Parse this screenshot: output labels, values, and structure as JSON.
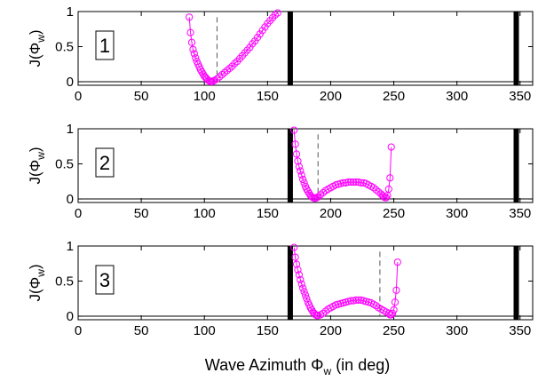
{
  "chart_data": {
    "type": "scatter",
    "xlabel": {
      "main": "Wave Azimuth ",
      "symbol": "Φ",
      "sub": "w",
      "tail": " (in deg)"
    },
    "ylabel": {
      "main": "J(",
      "symbol": "Φ",
      "sub": "w",
      "tail": ")"
    },
    "xlim": [
      0,
      360
    ],
    "ylim": [
      -0.05,
      1
    ],
    "xticks": [
      0,
      50,
      100,
      150,
      200,
      250,
      300,
      350
    ],
    "yticks": [
      0,
      0.5,
      1
    ],
    "ytick_labels": [
      "0",
      "0.5",
      "1"
    ],
    "colors": {
      "series": "#ff00ff",
      "bars": "#000000",
      "dashed": "#555555"
    },
    "panels": [
      {
        "label": "1",
        "bars": [
          168,
          347
        ],
        "dashed_x": 110,
        "dashed_range": [
          0,
          0.92
        ],
        "x": [
          88,
          89,
          90,
          91,
          92,
          93,
          94,
          95,
          96,
          97,
          98,
          99,
          100,
          101,
          102,
          103,
          104,
          105,
          106,
          107,
          108,
          110,
          112,
          114,
          116,
          118,
          120,
          122,
          124,
          126,
          128,
          130,
          132,
          134,
          136,
          138,
          140,
          142,
          144,
          146,
          148,
          150,
          152,
          154,
          156,
          158
        ],
        "y": [
          0.92,
          0.7,
          0.56,
          0.46,
          0.4,
          0.34,
          0.29,
          0.25,
          0.21,
          0.17,
          0.14,
          0.11,
          0.08,
          0.06,
          0.04,
          0.02,
          0.01,
          0.0,
          0.0,
          0.01,
          0.02,
          0.04,
          0.07,
          0.1,
          0.13,
          0.16,
          0.19,
          0.22,
          0.26,
          0.29,
          0.33,
          0.37,
          0.41,
          0.45,
          0.49,
          0.54,
          0.58,
          0.63,
          0.68,
          0.73,
          0.78,
          0.83,
          0.87,
          0.91,
          0.95,
          0.98
        ]
      },
      {
        "label": "2",
        "bars": [
          168,
          347
        ],
        "dashed_x": 190,
        "dashed_range": [
          0,
          0.92
        ],
        "x": [
          171,
          172,
          173,
          174,
          175,
          176,
          177,
          178,
          179,
          180,
          181,
          182,
          183,
          184,
          185,
          186,
          187,
          188,
          189,
          190,
          192,
          194,
          196,
          198,
          200,
          202,
          204,
          206,
          208,
          210,
          212,
          214,
          216,
          218,
          220,
          222,
          224,
          226,
          228,
          230,
          232,
          234,
          236,
          238,
          240,
          241,
          242,
          243,
          244,
          245,
          246,
          247,
          248
        ],
        "y": [
          0.98,
          0.78,
          0.64,
          0.54,
          0.46,
          0.4,
          0.34,
          0.28,
          0.23,
          0.18,
          0.14,
          0.11,
          0.08,
          0.05,
          0.03,
          0.02,
          0.01,
          0.01,
          0.02,
          0.03,
          0.06,
          0.09,
          0.12,
          0.14,
          0.16,
          0.18,
          0.2,
          0.21,
          0.22,
          0.23,
          0.23,
          0.24,
          0.24,
          0.24,
          0.24,
          0.24,
          0.23,
          0.23,
          0.22,
          0.2,
          0.18,
          0.16,
          0.13,
          0.1,
          0.07,
          0.05,
          0.03,
          0.02,
          0.02,
          0.05,
          0.14,
          0.3,
          0.74
        ]
      },
      {
        "label": "3",
        "bars": [
          168,
          347
        ],
        "dashed_x": 239,
        "dashed_range": [
          0,
          0.92
        ],
        "x": [
          171,
          172,
          173,
          174,
          175,
          176,
          177,
          178,
          179,
          180,
          181,
          182,
          183,
          184,
          185,
          186,
          187,
          188,
          189,
          190,
          192,
          194,
          196,
          198,
          200,
          202,
          204,
          206,
          208,
          210,
          212,
          214,
          216,
          218,
          220,
          222,
          224,
          226,
          228,
          230,
          232,
          234,
          236,
          238,
          240,
          242,
          244,
          246,
          247,
          248,
          249,
          250,
          251,
          252,
          253
        ],
        "y": [
          0.98,
          0.84,
          0.74,
          0.66,
          0.59,
          0.52,
          0.46,
          0.4,
          0.35,
          0.3,
          0.25,
          0.2,
          0.16,
          0.12,
          0.09,
          0.06,
          0.04,
          0.02,
          0.01,
          0.01,
          0.02,
          0.04,
          0.07,
          0.1,
          0.12,
          0.14,
          0.16,
          0.17,
          0.18,
          0.19,
          0.2,
          0.21,
          0.22,
          0.22,
          0.23,
          0.23,
          0.23,
          0.22,
          0.21,
          0.2,
          0.19,
          0.17,
          0.15,
          0.12,
          0.1,
          0.08,
          0.06,
          0.04,
          0.02,
          0.02,
          0.04,
          0.09,
          0.2,
          0.37,
          0.77
        ]
      }
    ]
  }
}
